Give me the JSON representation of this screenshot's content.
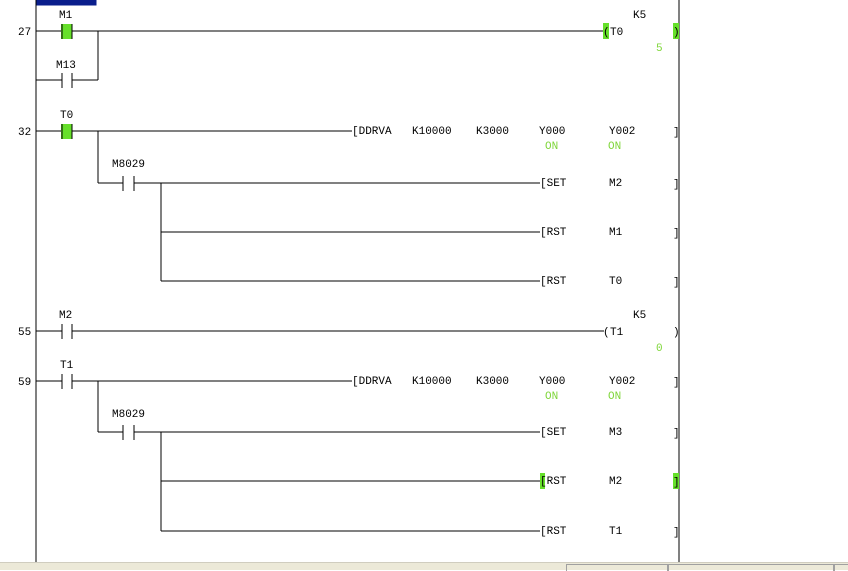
{
  "colors": {
    "monitor_on": "#66e02a",
    "monitor_text": "#7fd63a",
    "cursor": "#0a1e8c",
    "line": "#000000",
    "statusbar": "#ece9d8"
  },
  "rungs": [
    {
      "step": "27",
      "contacts": [
        {
          "label": "M1",
          "state": "on"
        },
        {
          "label": "M13",
          "state": "off"
        }
      ],
      "coil": {
        "open": "(",
        "device": "T0",
        "setting": "K5",
        "close": ")",
        "current": "5"
      }
    },
    {
      "step": "32",
      "contacts": [
        {
          "label": "T0",
          "state": "on"
        },
        {
          "label": "M8029",
          "state": "off"
        }
      ],
      "instr": {
        "name": "[DDRVA",
        "args": [
          "K10000",
          "K3000",
          "Y000",
          "Y002"
        ],
        "mon": [
          "ON",
          "ON"
        ],
        "close": "]"
      },
      "outs": [
        {
          "op": "[SET",
          "dev": "M2",
          "close": "]"
        },
        {
          "op": "[RST",
          "dev": "M1",
          "close": "]"
        },
        {
          "op": "[RST",
          "dev": "T0",
          "close": "]"
        }
      ]
    },
    {
      "step": "55",
      "contacts": [
        {
          "label": "M2",
          "state": "off"
        }
      ],
      "coil": {
        "open": "(",
        "device": "T1",
        "setting": "K5",
        "close": ")",
        "current": "0"
      }
    },
    {
      "step": "59",
      "contacts": [
        {
          "label": "T1",
          "state": "off"
        },
        {
          "label": "M8029",
          "state": "off"
        }
      ],
      "instr": {
        "name": "[DDRVA",
        "args": [
          "K10000",
          "K3000",
          "Y000",
          "Y002"
        ],
        "mon": [
          "ON",
          "ON"
        ],
        "close": "]"
      },
      "outs": [
        {
          "op": "[SET",
          "dev": "M3",
          "close": "]"
        },
        {
          "op": "[RST",
          "dev": "M2",
          "close": "]"
        },
        {
          "op": "[RST",
          "dev": "T1",
          "close": "]"
        }
      ]
    }
  ]
}
